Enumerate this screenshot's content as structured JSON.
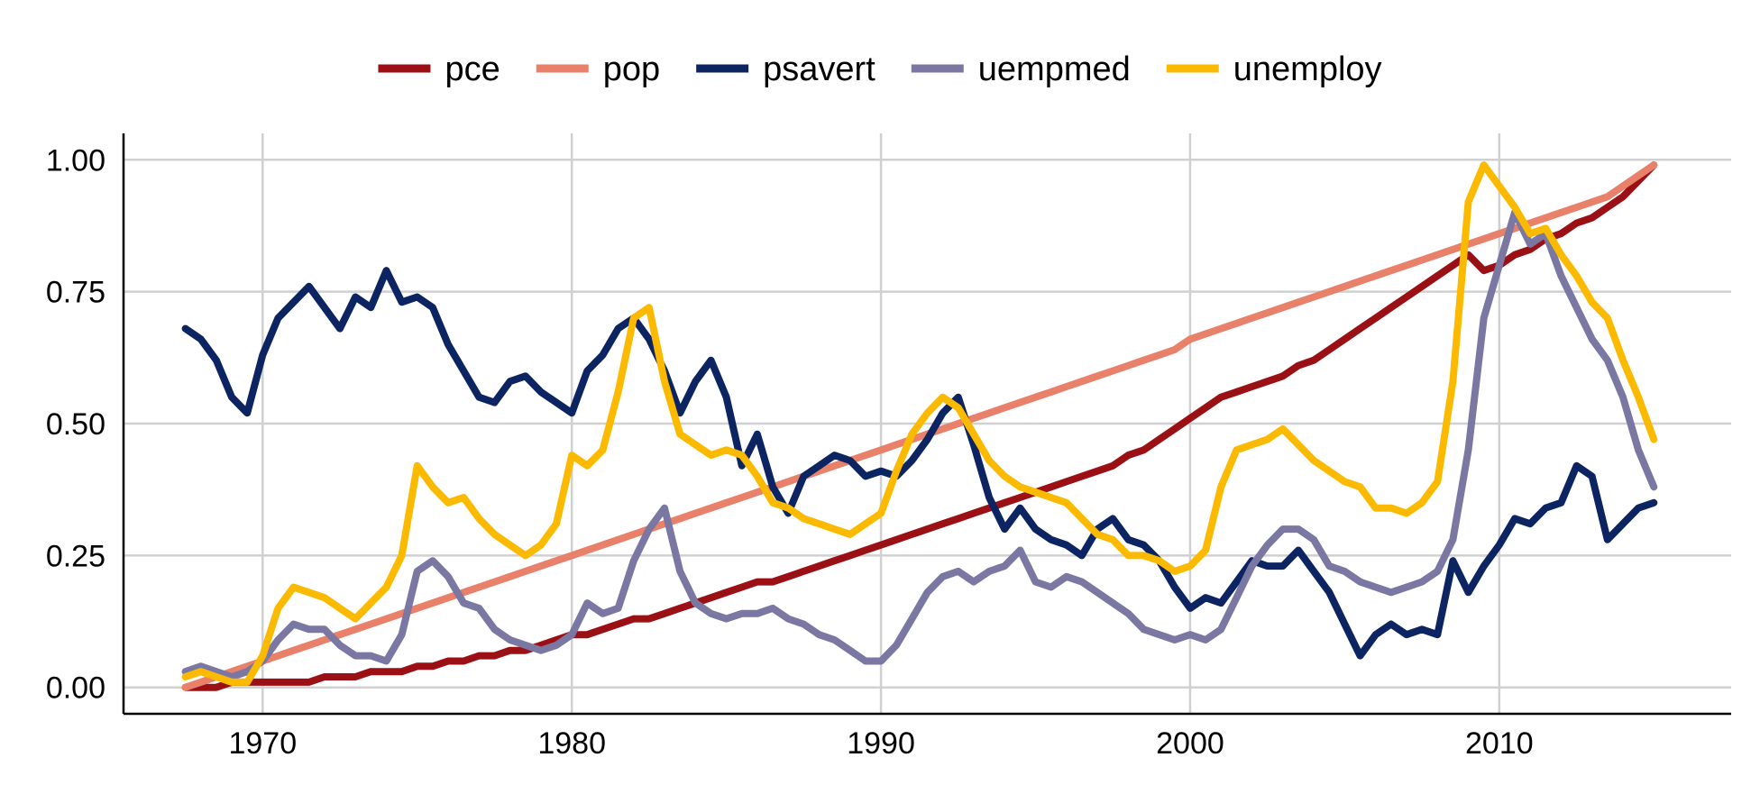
{
  "chart_data": {
    "type": "line",
    "title": "",
    "xlabel": "",
    "ylabel": "",
    "xlim": [
      1965.5,
      2017.5
    ],
    "ylim": [
      -0.05,
      1.05
    ],
    "x_ticks": [
      1970,
      1980,
      1990,
      2000,
      2010
    ],
    "x_tick_labels": [
      "1970",
      "1980",
      "1990",
      "2000",
      "2010"
    ],
    "y_ticks": [
      0,
      0.25,
      0.5,
      0.75,
      1.0
    ],
    "y_tick_labels": [
      "0.00",
      "0.25",
      "0.50",
      "0.75",
      "1.00"
    ],
    "grid": true,
    "legend_position": "top",
    "x": [
      1967.5,
      1968,
      1968.5,
      1969,
      1969.5,
      1970,
      1970.5,
      1971,
      1971.5,
      1972,
      1972.5,
      1973,
      1973.5,
      1974,
      1974.5,
      1975,
      1975.5,
      1976,
      1976.5,
      1977,
      1977.5,
      1978,
      1978.5,
      1979,
      1979.5,
      1980,
      1980.5,
      1981,
      1981.5,
      1982,
      1982.5,
      1983,
      1983.5,
      1984,
      1984.5,
      1985,
      1985.5,
      1986,
      1986.5,
      1987,
      1987.5,
      1988,
      1988.5,
      1989,
      1989.5,
      1990,
      1990.5,
      1991,
      1991.5,
      1992,
      1992.5,
      1993,
      1993.5,
      1994,
      1994.5,
      1995,
      1995.5,
      1996,
      1996.5,
      1997,
      1997.5,
      1998,
      1998.5,
      1999,
      1999.5,
      2000,
      2000.5,
      2001,
      2001.5,
      2002,
      2002.5,
      2003,
      2003.5,
      2004,
      2004.5,
      2005,
      2005.5,
      2006,
      2006.5,
      2007,
      2007.5,
      2008,
      2008.5,
      2009,
      2009.5,
      2010,
      2010.5,
      2011,
      2011.5,
      2012,
      2012.5,
      2013,
      2013.5,
      2014,
      2014.5,
      2015
    ],
    "series": [
      {
        "name": "pce",
        "color": "#9B1014",
        "values": [
          0.0,
          0.0,
          0.0,
          0.01,
          0.01,
          0.01,
          0.01,
          0.01,
          0.01,
          0.02,
          0.02,
          0.02,
          0.03,
          0.03,
          0.03,
          0.04,
          0.04,
          0.05,
          0.05,
          0.06,
          0.06,
          0.07,
          0.07,
          0.08,
          0.09,
          0.1,
          0.1,
          0.11,
          0.12,
          0.13,
          0.13,
          0.14,
          0.15,
          0.16,
          0.17,
          0.18,
          0.19,
          0.2,
          0.2,
          0.21,
          0.22,
          0.23,
          0.24,
          0.25,
          0.26,
          0.27,
          0.28,
          0.29,
          0.3,
          0.31,
          0.32,
          0.33,
          0.34,
          0.35,
          0.36,
          0.37,
          0.38,
          0.39,
          0.4,
          0.41,
          0.42,
          0.44,
          0.45,
          0.47,
          0.49,
          0.51,
          0.53,
          0.55,
          0.56,
          0.57,
          0.58,
          0.59,
          0.61,
          0.62,
          0.64,
          0.66,
          0.68,
          0.7,
          0.72,
          0.74,
          0.76,
          0.78,
          0.8,
          0.82,
          0.79,
          0.8,
          0.82,
          0.83,
          0.85,
          0.86,
          0.88,
          0.89,
          0.91,
          0.93,
          0.96,
          0.99
        ]
      },
      {
        "name": "pop",
        "color": "#E8806A",
        "values": [
          0.0,
          0.01,
          0.02,
          0.03,
          0.04,
          0.05,
          0.06,
          0.07,
          0.08,
          0.09,
          0.1,
          0.11,
          0.12,
          0.13,
          0.14,
          0.15,
          0.16,
          0.17,
          0.18,
          0.19,
          0.2,
          0.21,
          0.22,
          0.23,
          0.24,
          0.25,
          0.26,
          0.27,
          0.28,
          0.29,
          0.3,
          0.31,
          0.32,
          0.33,
          0.34,
          0.35,
          0.36,
          0.37,
          0.38,
          0.39,
          0.4,
          0.41,
          0.42,
          0.43,
          0.44,
          0.45,
          0.46,
          0.47,
          0.48,
          0.49,
          0.5,
          0.51,
          0.52,
          0.53,
          0.54,
          0.55,
          0.56,
          0.57,
          0.58,
          0.59,
          0.6,
          0.61,
          0.62,
          0.63,
          0.64,
          0.66,
          0.67,
          0.68,
          0.69,
          0.7,
          0.71,
          0.72,
          0.73,
          0.74,
          0.75,
          0.76,
          0.77,
          0.78,
          0.79,
          0.8,
          0.81,
          0.82,
          0.83,
          0.84,
          0.85,
          0.86,
          0.87,
          0.88,
          0.89,
          0.9,
          0.91,
          0.92,
          0.93,
          0.95,
          0.97,
          0.99
        ]
      },
      {
        "name": "psavert",
        "color": "#0C2461",
        "values": [
          0.68,
          0.66,
          0.62,
          0.55,
          0.52,
          0.63,
          0.7,
          0.73,
          0.76,
          0.72,
          0.68,
          0.74,
          0.72,
          0.79,
          0.73,
          0.74,
          0.72,
          0.65,
          0.6,
          0.55,
          0.54,
          0.58,
          0.59,
          0.56,
          0.54,
          0.52,
          0.6,
          0.63,
          0.68,
          0.7,
          0.66,
          0.6,
          0.52,
          0.58,
          0.62,
          0.55,
          0.42,
          0.48,
          0.38,
          0.33,
          0.4,
          0.42,
          0.44,
          0.43,
          0.4,
          0.41,
          0.4,
          0.43,
          0.47,
          0.52,
          0.55,
          0.46,
          0.36,
          0.3,
          0.34,
          0.3,
          0.28,
          0.27,
          0.25,
          0.3,
          0.32,
          0.28,
          0.27,
          0.24,
          0.19,
          0.15,
          0.17,
          0.16,
          0.2,
          0.24,
          0.23,
          0.23,
          0.26,
          0.22,
          0.18,
          0.12,
          0.06,
          0.1,
          0.12,
          0.1,
          0.11,
          0.1,
          0.24,
          0.18,
          0.23,
          0.27,
          0.32,
          0.31,
          0.34,
          0.35,
          0.42,
          0.4,
          0.28,
          0.31,
          0.34,
          0.35
        ]
      },
      {
        "name": "uempmed",
        "color": "#7A77A3",
        "values": [
          0.03,
          0.04,
          0.03,
          0.02,
          0.03,
          0.05,
          0.09,
          0.12,
          0.11,
          0.11,
          0.08,
          0.06,
          0.06,
          0.05,
          0.1,
          0.22,
          0.24,
          0.21,
          0.16,
          0.15,
          0.11,
          0.09,
          0.08,
          0.07,
          0.08,
          0.1,
          0.16,
          0.14,
          0.15,
          0.24,
          0.3,
          0.34,
          0.22,
          0.16,
          0.14,
          0.13,
          0.14,
          0.14,
          0.15,
          0.13,
          0.12,
          0.1,
          0.09,
          0.07,
          0.05,
          0.05,
          0.08,
          0.13,
          0.18,
          0.21,
          0.22,
          0.2,
          0.22,
          0.23,
          0.26,
          0.2,
          0.19,
          0.21,
          0.2,
          0.18,
          0.16,
          0.14,
          0.11,
          0.1,
          0.09,
          0.1,
          0.09,
          0.11,
          0.17,
          0.23,
          0.27,
          0.3,
          0.3,
          0.28,
          0.23,
          0.22,
          0.2,
          0.19,
          0.18,
          0.19,
          0.2,
          0.22,
          0.28,
          0.45,
          0.7,
          0.8,
          0.9,
          0.84,
          0.86,
          0.78,
          0.72,
          0.66,
          0.62,
          0.55,
          0.45,
          0.38
        ]
      },
      {
        "name": "unemploy",
        "color": "#FBBA00",
        "values": [
          0.02,
          0.03,
          0.02,
          0.01,
          0.01,
          0.06,
          0.15,
          0.19,
          0.18,
          0.17,
          0.15,
          0.13,
          0.16,
          0.19,
          0.25,
          0.42,
          0.38,
          0.35,
          0.36,
          0.32,
          0.29,
          0.27,
          0.25,
          0.27,
          0.31,
          0.44,
          0.42,
          0.45,
          0.56,
          0.7,
          0.72,
          0.58,
          0.48,
          0.46,
          0.44,
          0.45,
          0.44,
          0.4,
          0.35,
          0.34,
          0.32,
          0.31,
          0.3,
          0.29,
          0.31,
          0.33,
          0.41,
          0.48,
          0.52,
          0.55,
          0.53,
          0.48,
          0.43,
          0.4,
          0.38,
          0.37,
          0.36,
          0.35,
          0.32,
          0.29,
          0.28,
          0.25,
          0.25,
          0.24,
          0.22,
          0.23,
          0.26,
          0.38,
          0.45,
          0.46,
          0.47,
          0.49,
          0.46,
          0.43,
          0.41,
          0.39,
          0.38,
          0.34,
          0.34,
          0.33,
          0.35,
          0.39,
          0.58,
          0.92,
          0.99,
          0.95,
          0.91,
          0.86,
          0.87,
          0.82,
          0.78,
          0.73,
          0.7,
          0.62,
          0.55,
          0.47
        ]
      }
    ]
  }
}
